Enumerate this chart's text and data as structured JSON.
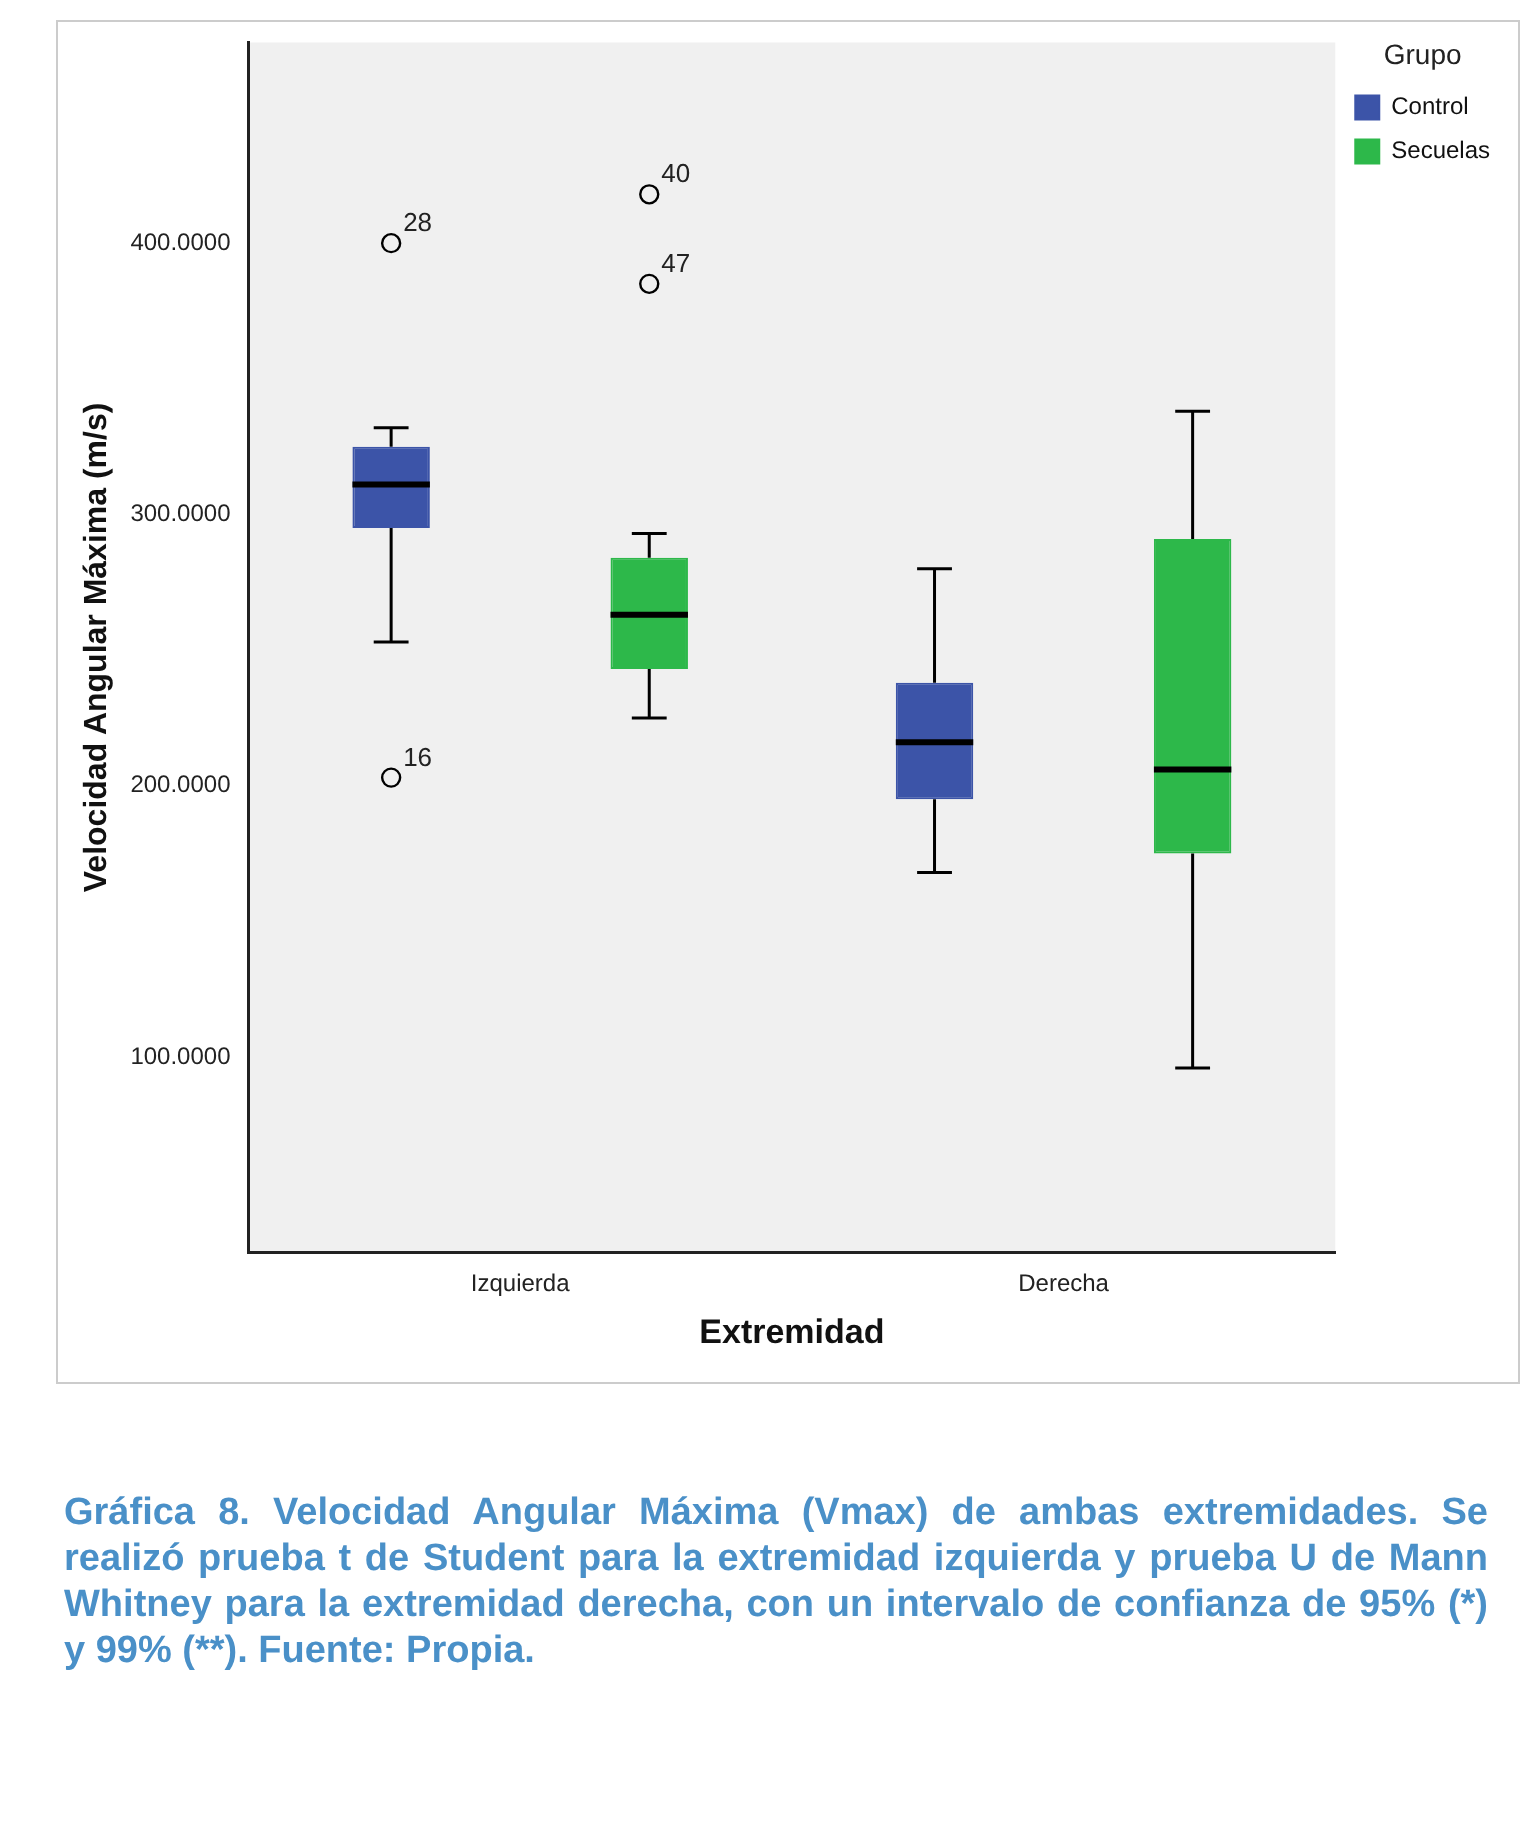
{
  "chart_data": {
    "type": "box",
    "xlabel": "Extremidad",
    "ylabel": "Velocidad Angular Máxima (m/s)",
    "legend_title": "Grupo",
    "legend": "top right",
    "grid": false,
    "categories": [
      "Izquierda",
      "Derecha"
    ],
    "ylim": [
      28,
      474
    ],
    "yticks": [
      {
        "value": 100,
        "label": "100.0000"
      },
      {
        "value": 200,
        "label": "200.0000"
      },
      {
        "value": 300,
        "label": "300.0000"
      },
      {
        "value": 400,
        "label": "400.0000"
      }
    ],
    "series": [
      {
        "name": "Control",
        "color": "#3c54a8",
        "boxes": [
          {
            "low": 253,
            "q1": 295,
            "median": 311,
            "q3": 325,
            "high": 332,
            "outliers": [
              400,
              203
            ]
          },
          {
            "low": 168,
            "q1": 195,
            "median": 216,
            "q3": 238,
            "high": 280
          }
        ]
      },
      {
        "name": "Secuelas",
        "color": "#2db84a",
        "boxes": [
          {
            "low": 225,
            "q1": 243,
            "median": 263,
            "q3": 284,
            "high": 293,
            "outliers": [
              418,
              385
            ]
          },
          {
            "low": 96,
            "q1": 175,
            "median": 206,
            "q3": 291,
            "high": 338
          }
        ]
      }
    ],
    "annotations": [
      "28",
      "16",
      "40",
      "47",
      "Gráfica 8. Velocidad Angular Máxima (Vmax) de ambas extremidades. Se realizó prueba t de Student para la extremidad izquierda y prueba U de Mann Whitney para la extremidad derecha, con un intervalo de confianza de 95% (*) y 99% (**). Fuente: Propia."
    ]
  }
}
